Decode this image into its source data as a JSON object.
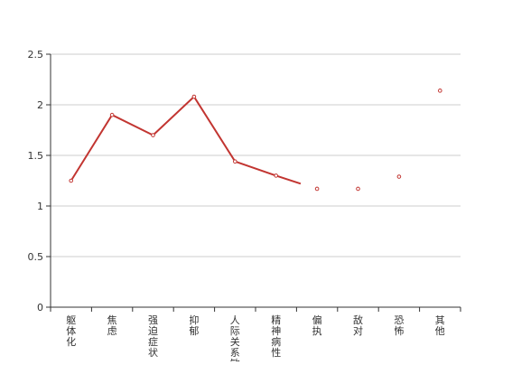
{
  "chart_data": {
    "type": "line",
    "title": "",
    "xlabel": "",
    "ylabel": "",
    "categories": [
      "躯体化",
      "焦虑",
      "强迫症状",
      "抑郁",
      "人际关系敏感",
      "精神病性",
      "偏执",
      "敌对",
      "恐怖",
      "其他"
    ],
    "series": [
      {
        "name": "",
        "values": [
          1.25,
          1.9,
          1.7,
          2.08,
          1.44,
          1.3,
          1.17,
          1.17,
          1.29,
          2.14
        ],
        "line_segment_end_category_index": 5,
        "line_extends_to_fraction": 0.6,
        "line_extends_to_value": 1.22,
        "color": "#c23531"
      }
    ],
    "ylim": [
      0,
      2.5
    ],
    "yticks": [
      0,
      0.5,
      1,
      1.5,
      2,
      2.5
    ],
    "ytick_labels": [
      "0",
      "0.5",
      "1",
      "1.5",
      "2",
      "2.5"
    ],
    "grid": true,
    "legend": "none"
  }
}
